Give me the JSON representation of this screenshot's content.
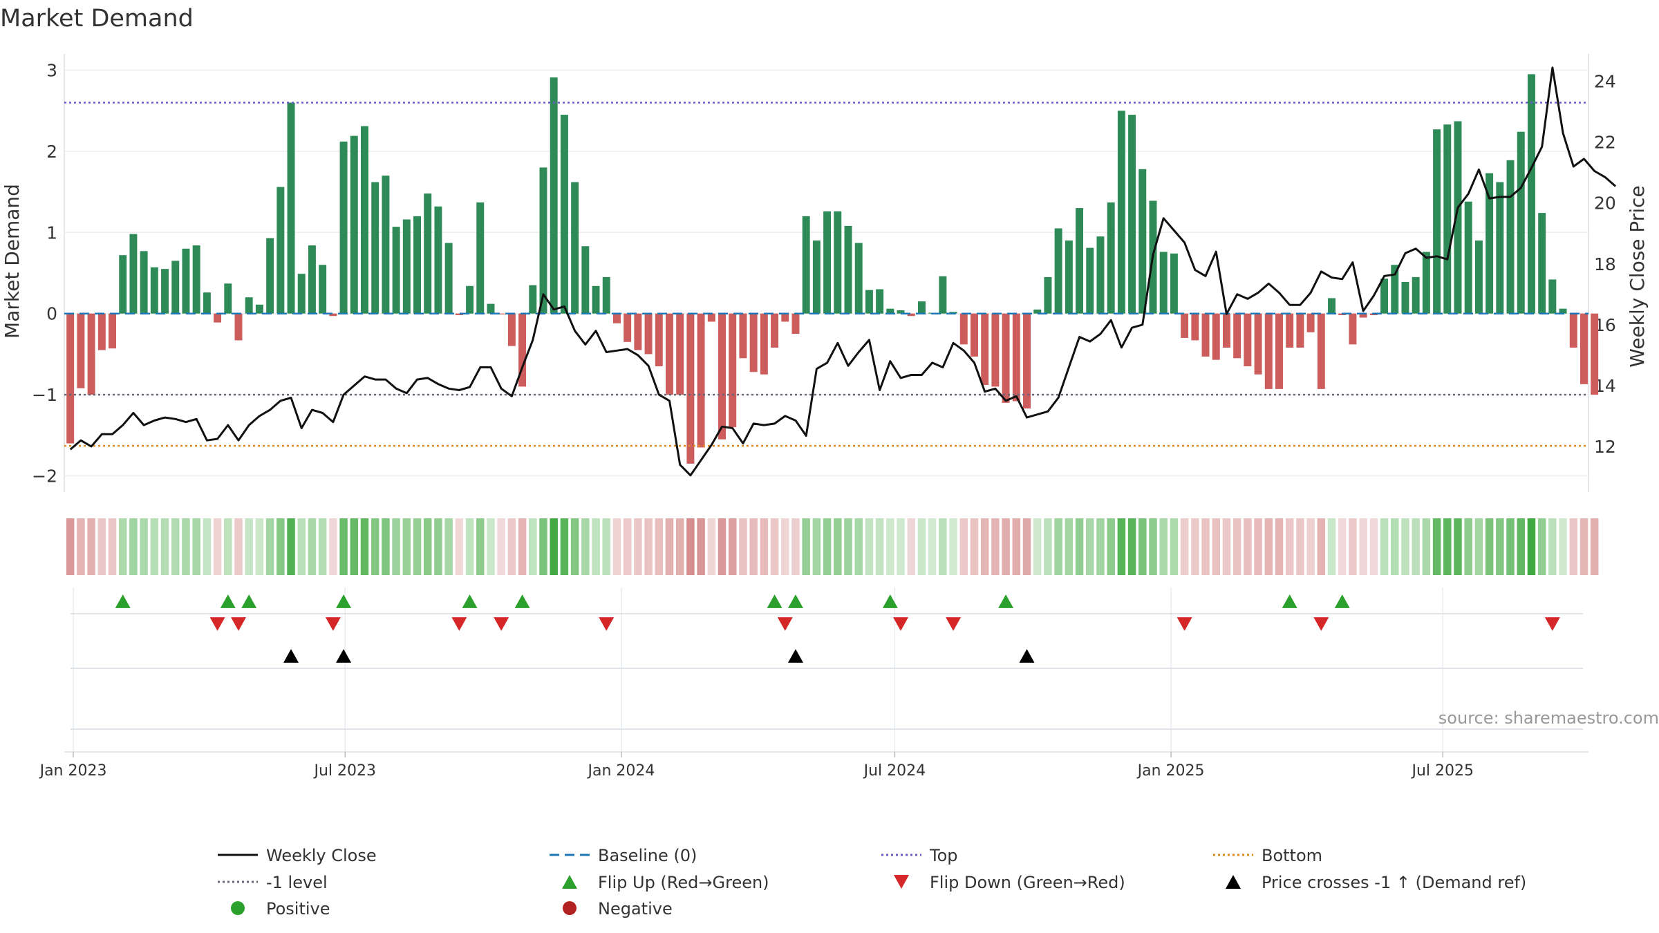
{
  "chart_data": {
    "type": "bar+line",
    "title": "Market Demand",
    "ylabel_left": "Market Demand",
    "ylabel_right": "Weekly Close Price",
    "ylim_left": [
      -2.2,
      3.2
    ],
    "ylim_right": [
      10.5,
      24.9
    ],
    "yticks_left": [
      3,
      2,
      1,
      0,
      -1,
      -2
    ],
    "yticks_left_labels": [
      "3",
      "2",
      "1",
      "0",
      "−1",
      "−2"
    ],
    "yticks_right": [
      24,
      22,
      20,
      18,
      16,
      14,
      12
    ],
    "x_range": [
      "2022-12-26",
      "2025-10-06"
    ],
    "x_ticks": [
      {
        "date": "2023-01-01",
        "label": "Jan 2023"
      },
      {
        "date": "2023-07-01",
        "label": "Jul 2023"
      },
      {
        "date": "2024-01-01",
        "label": "Jan 2024"
      },
      {
        "date": "2024-07-01",
        "label": "Jul 2024"
      },
      {
        "date": "2025-01-01",
        "label": "Jan 2025"
      },
      {
        "date": "2025-07-01",
        "label": "Jul 2025"
      }
    ],
    "reference_lines": {
      "top": 2.6,
      "minus_one": -1,
      "bottom": -1.63,
      "baseline": 0
    },
    "start_week": "2022-12-30",
    "demand": [
      -1.6,
      -0.92,
      -1.0,
      -0.45,
      -0.43,
      0.72,
      0.98,
      0.77,
      0.57,
      0.55,
      0.65,
      0.8,
      0.84,
      0.26,
      -0.11,
      0.37,
      -0.33,
      0.2,
      0.11,
      0.93,
      1.56,
      2.6,
      0.49,
      0.84,
      0.6,
      -0.03,
      2.12,
      2.19,
      2.31,
      1.62,
      1.7,
      1.07,
      1.16,
      1.2,
      1.48,
      1.32,
      0.87,
      -0.02,
      0.34,
      1.37,
      0.12,
      -0.01,
      -0.4,
      -0.9,
      0.35,
      1.8,
      2.91,
      2.45,
      1.62,
      0.83,
      0.34,
      0.45,
      -0.12,
      -0.35,
      -0.45,
      -0.5,
      -0.65,
      -1.0,
      -1.0,
      -1.85,
      -1.65,
      -0.1,
      -1.55,
      -1.4,
      -0.55,
      -0.72,
      -0.75,
      -0.42,
      -0.1,
      -0.25,
      1.2,
      0.9,
      1.26,
      1.26,
      1.08,
      0.87,
      0.29,
      0.3,
      0.06,
      0.04,
      -0.03,
      0.15,
      0.01,
      0.46,
      0.02,
      -0.38,
      -0.53,
      -0.88,
      -0.9,
      -1.1,
      -1.08,
      -1.17,
      0.05,
      0.45,
      1.05,
      0.9,
      1.3,
      0.81,
      0.95,
      1.37,
      2.5,
      2.45,
      1.78,
      1.39,
      0.76,
      0.74,
      -0.3,
      -0.33,
      -0.53,
      -0.57,
      -0.42,
      -0.55,
      -0.65,
      -0.75,
      -0.93,
      -0.93,
      -0.42,
      -0.42,
      -0.23,
      -0.93,
      0.19,
      -0.02,
      -0.38,
      -0.05,
      -0.02,
      0.43,
      0.6,
      0.39,
      0.45,
      0.76,
      2.27,
      2.33,
      2.37,
      1.38,
      0.9,
      1.73,
      1.62,
      1.89,
      2.24,
      2.95,
      1.24,
      0.42,
      0.06,
      -0.42,
      -0.87,
      -1.0
    ],
    "close": [
      11.9,
      12.2,
      12.0,
      12.4,
      12.4,
      12.7,
      13.1,
      12.7,
      12.85,
      12.95,
      12.9,
      12.8,
      12.9,
      12.2,
      12.25,
      12.7,
      12.2,
      12.7,
      13.0,
      13.2,
      13.5,
      13.6,
      12.6,
      13.2,
      13.1,
      12.8,
      13.7,
      14.0,
      14.3,
      14.2,
      14.2,
      13.9,
      13.75,
      14.2,
      14.25,
      14.05,
      13.9,
      13.85,
      13.95,
      14.6,
      14.6,
      13.9,
      13.65,
      14.6,
      15.5,
      17.0,
      16.5,
      16.6,
      15.8,
      15.35,
      15.8,
      15.1,
      15.15,
      15.2,
      15.0,
      14.65,
      13.7,
      13.5,
      11.4,
      11.05,
      11.55,
      12.05,
      12.65,
      12.6,
      12.1,
      12.75,
      12.7,
      12.75,
      13.0,
      12.85,
      12.35,
      14.55,
      14.75,
      15.4,
      14.65,
      15.1,
      15.5,
      13.85,
      14.8,
      14.25,
      14.35,
      14.35,
      14.75,
      14.6,
      15.4,
      15.15,
      14.75,
      13.8,
      13.9,
      13.5,
      13.65,
      12.95,
      13.05,
      13.15,
      13.6,
      14.6,
      15.6,
      15.45,
      15.7,
      16.15,
      15.25,
      15.9,
      16.0,
      18.3,
      19.5,
      19.1,
      18.7,
      17.8,
      17.6,
      18.4,
      16.35,
      17.0,
      16.85,
      17.05,
      17.35,
      17.05,
      16.65,
      16.65,
      17.05,
      17.75,
      17.55,
      17.5,
      18.05,
      16.45,
      16.95,
      17.6,
      17.65,
      18.35,
      18.5,
      18.2,
      18.25,
      18.15,
      19.85,
      20.3,
      21.1,
      20.15,
      20.2,
      20.2,
      20.5,
      21.15,
      21.85,
      24.45,
      22.3,
      21.2,
      21.45,
      21.05,
      20.85,
      20.55
    ],
    "markers": {
      "flip_up_weeks": [
        5,
        15,
        17,
        26,
        38,
        43,
        67,
        69,
        78,
        89,
        116,
        121
      ],
      "flip_down_weeks": [
        14,
        16,
        25,
        37,
        41,
        51,
        68,
        79,
        84,
        106,
        119,
        141
      ],
      "price_cross_weeks": [
        21,
        26,
        69,
        91
      ]
    },
    "source": "source: sharemaestro.com",
    "legend": [
      {
        "label": "Weekly Close",
        "style": "black-line"
      },
      {
        "label": "Baseline (0)",
        "style": "blue-dash"
      },
      {
        "label": "Top",
        "style": "purple-dot"
      },
      {
        "label": "Bottom",
        "style": "orange-dot"
      },
      {
        "label": "-1 level",
        "style": "gray-dot"
      },
      {
        "label": "Flip Up (Red→Green)",
        "style": "green-up"
      },
      {
        "label": "Flip Down (Green→Red)",
        "style": "red-down"
      },
      {
        "label": "Price crosses -1 ↑ (Demand ref)",
        "style": "black-up"
      },
      {
        "label": "Positive",
        "style": "green-dot"
      },
      {
        "label": "Negative",
        "style": "red-dot"
      }
    ],
    "colors": {
      "positive": "#2e8b57",
      "negative": "#cd5c5c",
      "close": "#111111",
      "top": "#6a5acd",
      "bottom": "#e08a1e",
      "minus_one": "#666677",
      "baseline": "#1f77b4",
      "flip_up": "#2ca02c",
      "flip_down": "#d62728",
      "cross": "#000000",
      "legend_positive": "#2ca02c",
      "legend_negative": "#b22222"
    }
  }
}
